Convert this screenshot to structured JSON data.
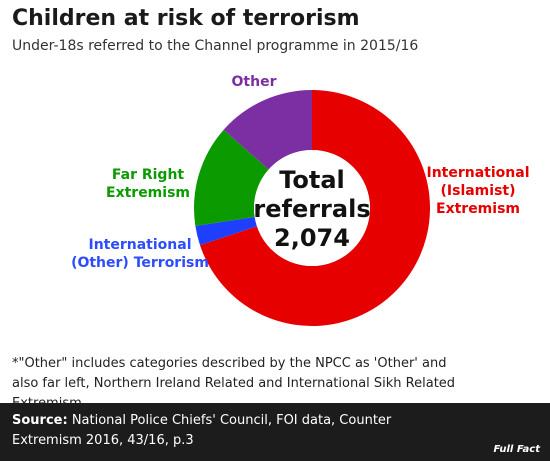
{
  "title": "Children at risk of terrorism",
  "subtitle": "Under-18s referred to the Channel programme in 2015/16",
  "chart_data": {
    "type": "pie",
    "title": "Children at risk of terrorism",
    "subtitle": "Under-18s referred to the Channel programme in 2015/16",
    "center_label": {
      "line1": "Total",
      "line2": "referrals",
      "line3": "2,074"
    },
    "total": 2074,
    "slices": [
      {
        "label_line1": "International",
        "label_line2": "(Islamist)",
        "label_line3": "Extremism",
        "value": 1450,
        "color": "#e60000"
      },
      {
        "label_line1": "International",
        "label_line2": "(Other) Terrorism",
        "value": 55,
        "color": "#1f3fff"
      },
      {
        "label_line1": "Far Right",
        "label_line2": "Extremism",
        "value": 290,
        "color": "#0b9a00"
      },
      {
        "label_line1": "Other",
        "value": 279,
        "color": "#7b2fa3"
      }
    ]
  },
  "footnote": "*\"Other\" includes categories described by the NPCC as 'Other' and also far left, Northern Ireland Related and International Sikh Related Extremism",
  "source": {
    "label": "Source:",
    "text": "National Police Chiefs' Council, FOI data, Counter Extremism 2016, 43/16, p.3"
  },
  "logo": "Full Fact"
}
